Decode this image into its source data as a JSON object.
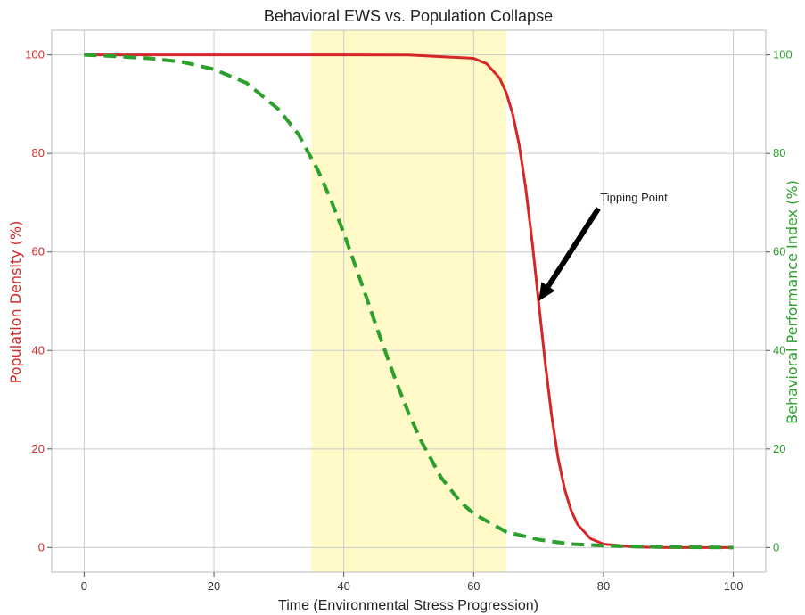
{
  "chart_data": {
    "type": "line",
    "title": "Behavioral EWS vs. Population Collapse",
    "xlabel": "Time (Environmental Stress Progression)",
    "ylabel_left": "Population Density (%)",
    "ylabel_right": "Behavioral Performance Index (%)",
    "xlim": [
      -5,
      105
    ],
    "ylim": [
      -5,
      105
    ],
    "x_ticks": [
      0,
      20,
      40,
      60,
      80,
      100
    ],
    "y_ticks": [
      0,
      20,
      40,
      60,
      80,
      100
    ],
    "grid": true,
    "shaded_region": {
      "x_start": 35,
      "x_end": 65,
      "color": "#fffac8"
    },
    "series": [
      {
        "axis": "left",
        "color": "#d62728",
        "style": "solid",
        "x": [
          0,
          50,
          60,
          62,
          64,
          65,
          66,
          67,
          68,
          69,
          70,
          71,
          72,
          73,
          74,
          75,
          76,
          78,
          80,
          85,
          90,
          100
        ],
        "y": [
          100,
          99.99,
          99.3,
          98.2,
          95.3,
          92.4,
          88.1,
          81.8,
          73.1,
          62.2,
          50,
          37.8,
          26.9,
          18.2,
          11.9,
          7.6,
          4.7,
          1.8,
          0.7,
          0.1,
          0,
          0
        ]
      },
      {
        "axis": "right",
        "color": "#2ca02c",
        "style": "dashed",
        "x": [
          0,
          5,
          10,
          15,
          20,
          25,
          30,
          33,
          36,
          38,
          40,
          42,
          44,
          45,
          46,
          48,
          50,
          52,
          55,
          58,
          60,
          65,
          70,
          75,
          80,
          85,
          90,
          100
        ],
        "y": [
          100,
          99.7,
          99.3,
          98.6,
          97.1,
          94.3,
          88.9,
          83.9,
          76.6,
          70.6,
          63.8,
          56.4,
          48.8,
          44.9,
          41.2,
          33.9,
          27.2,
          21.4,
          14.2,
          9.2,
          6.9,
          3.2,
          1.6,
          0.7,
          0.4,
          0.2,
          0.1,
          0
        ]
      }
    ],
    "annotation": {
      "text": "Tipping Point",
      "x": 70,
      "y": 50,
      "text_x": 79.5,
      "text_y": 71
    },
    "colors": {
      "left_axis": "#d62728",
      "right_axis": "#2ca02c",
      "grid": "#cccccc",
      "annotation_arrow": "#000000"
    }
  }
}
